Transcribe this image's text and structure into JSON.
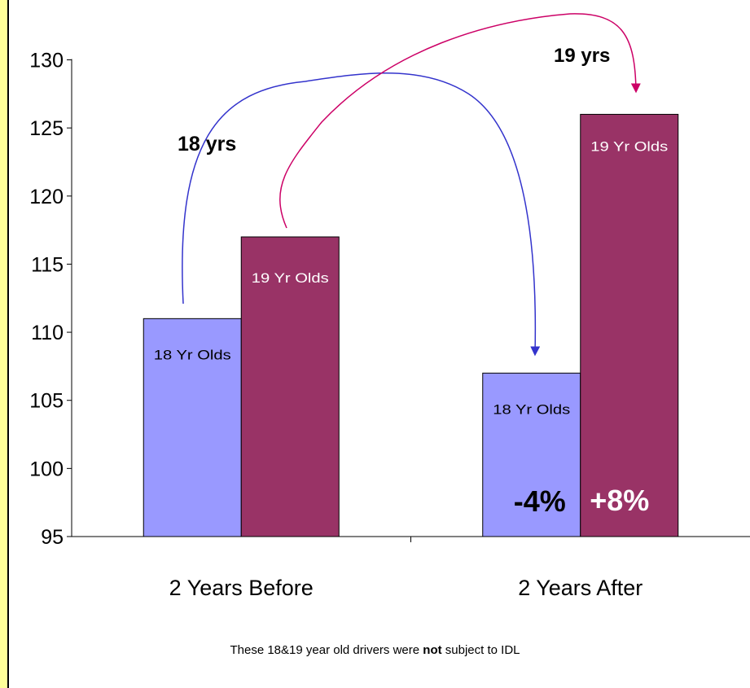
{
  "chart_data": {
    "type": "bar",
    "categories": [
      "2 Years Before",
      "2 Years After"
    ],
    "series": [
      {
        "name": "18 Yr Olds",
        "values": [
          111,
          107
        ],
        "color": "#9999ff"
      },
      {
        "name": "19 Yr Olds",
        "values": [
          117,
          126
        ],
        "color": "#993366"
      }
    ],
    "bar_labels": [
      [
        "18 Yr Olds",
        "18 Yr Olds"
      ],
      [
        "19 Yr Olds",
        "19 Yr Olds"
      ]
    ],
    "ylim": [
      95,
      130
    ],
    "yticks": [
      "95",
      "100",
      "105",
      "110",
      "115",
      "120",
      "125",
      "130"
    ],
    "grid": false,
    "annotations": {
      "arrow_18_label": "18 yrs",
      "arrow_19_label": "19 yrs",
      "change_18": "-4%",
      "change_19": "+8%",
      "arrow_18_color": "#3333cc",
      "arrow_19_color": "#cc0066"
    }
  },
  "footnote": {
    "before": "These 18&19 year old drivers were ",
    "bold": "not",
    "after": " subject to IDL"
  },
  "colors": {
    "left_strip": "#ffff99",
    "background": "#ffffff"
  }
}
